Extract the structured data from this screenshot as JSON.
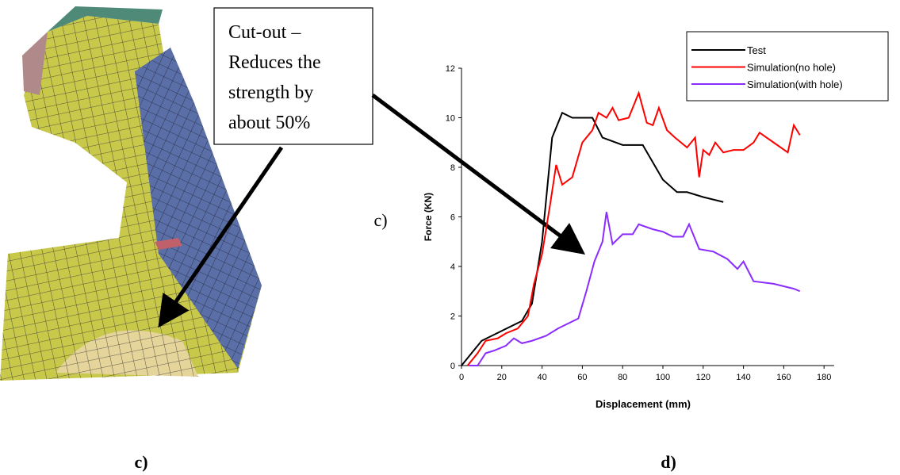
{
  "chart_data": {
    "type": "line",
    "xlabel": "Displacement (mm)",
    "ylabel": "Force (KN)",
    "panel_label": "c)",
    "xlim": [
      0,
      185
    ],
    "ylim": [
      0,
      12
    ],
    "xticks": [
      0,
      20,
      40,
      60,
      80,
      100,
      120,
      140,
      160,
      180
    ],
    "yticks": [
      0,
      2,
      4,
      6,
      8,
      10,
      12
    ],
    "legend": "top-right",
    "series": [
      {
        "name": "Test",
        "color": "#000000",
        "x": [
          0,
          5,
          10,
          20,
          30,
          35,
          40,
          45,
          50,
          55,
          65,
          70,
          80,
          90,
          100,
          107,
          112,
          120,
          130
        ],
        "values": [
          0,
          0.5,
          1,
          1.4,
          1.8,
          2.5,
          5,
          9.2,
          10.2,
          10,
          10,
          9.2,
          8.9,
          8.9,
          7.5,
          7,
          7,
          6.8,
          6.6
        ]
      },
      {
        "name": "Simulation(no hole)",
        "color": "#ff0000",
        "x": [
          3,
          8,
          12,
          18,
          22,
          28,
          33,
          36,
          40,
          44,
          47,
          50,
          55,
          60,
          65,
          68,
          72,
          75,
          78,
          83,
          88,
          92,
          95,
          98,
          102,
          106,
          112,
          116,
          118,
          120,
          123,
          126,
          130,
          135,
          140,
          145,
          148,
          155,
          162,
          165,
          168
        ],
        "values": [
          0,
          0.5,
          1,
          1.1,
          1.3,
          1.5,
          2,
          3.3,
          4.5,
          6.5,
          8.1,
          7.3,
          7.6,
          9,
          9.5,
          10.2,
          10,
          10.4,
          9.9,
          10,
          11,
          9.8,
          9.7,
          10.4,
          9.5,
          9.2,
          8.8,
          9.2,
          7.6,
          8.7,
          8.5,
          9,
          8.6,
          8.7,
          8.7,
          9,
          9.4,
          9,
          8.6,
          9.7,
          9.3
        ]
      },
      {
        "name": "Simulation(with hole)",
        "color": "#8b2cff",
        "x": [
          4,
          8,
          12,
          16,
          22,
          26,
          30,
          35,
          42,
          48,
          53,
          58,
          62,
          66,
          70,
          72,
          75,
          80,
          85,
          88,
          95,
          100,
          105,
          110,
          113,
          118,
          125,
          132,
          137,
          140,
          145,
          155,
          160,
          165,
          168
        ],
        "values": [
          0,
          0,
          0.5,
          0.6,
          0.8,
          1.1,
          0.9,
          1,
          1.2,
          1.5,
          1.7,
          1.9,
          3,
          4.2,
          5,
          6.2,
          4.9,
          5.3,
          5.3,
          5.7,
          5.5,
          5.4,
          5.2,
          5.2,
          5.7,
          4.7,
          4.6,
          4.3,
          3.9,
          4.2,
          3.4,
          3.3,
          3.2,
          3.1,
          3
        ]
      }
    ]
  },
  "callout": {
    "lines": [
      "Cut-out –",
      "Reduces the",
      "strength by",
      "about 50%"
    ]
  },
  "captions": [
    "c)",
    "d)"
  ]
}
